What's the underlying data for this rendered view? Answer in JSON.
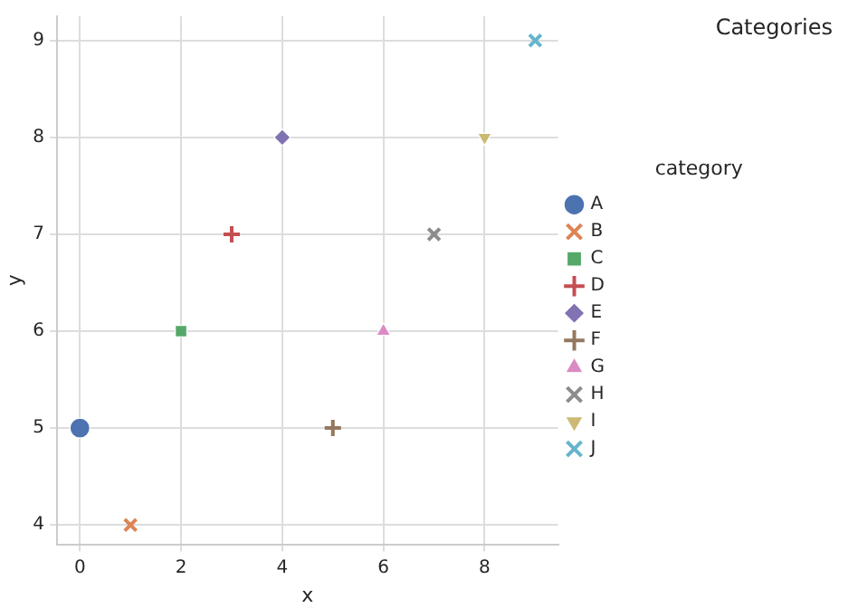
{
  "chart_data": {
    "type": "scatter",
    "title": "Categories",
    "xlabel": "x",
    "ylabel": "y",
    "legend_title": "category",
    "legend": "right",
    "grid": true,
    "xlim": [
      -0.45,
      9.45
    ],
    "xticks": [
      0,
      2,
      4,
      6,
      8
    ],
    "ylim": [
      3.8,
      9.25
    ],
    "yticks": [
      4,
      5,
      6,
      7,
      8,
      9
    ],
    "series": [
      {
        "name": "A",
        "color": "#4c72b0",
        "marker": "circle",
        "x": [
          0
        ],
        "values": [
          5
        ]
      },
      {
        "name": "B",
        "color": "#dd8452",
        "marker": "cross",
        "x": [
          1
        ],
        "values": [
          4
        ]
      },
      {
        "name": "C",
        "color": "#55a868",
        "marker": "square",
        "x": [
          2
        ],
        "values": [
          6
        ]
      },
      {
        "name": "D",
        "color": "#c44e52",
        "marker": "plus",
        "x": [
          3
        ],
        "values": [
          7
        ]
      },
      {
        "name": "E",
        "color": "#8172b3",
        "marker": "diamond",
        "x": [
          4
        ],
        "values": [
          8
        ]
      },
      {
        "name": "F",
        "color": "#937860",
        "marker": "plus",
        "x": [
          5
        ],
        "values": [
          5
        ]
      },
      {
        "name": "G",
        "color": "#da8bc3",
        "marker": "triangle",
        "x": [
          6
        ],
        "values": [
          6
        ]
      },
      {
        "name": "H",
        "color": "#8c8c8c",
        "marker": "cross",
        "x": [
          7
        ],
        "values": [
          7
        ]
      },
      {
        "name": "I",
        "color": "#ccb974",
        "marker": "triangle-down",
        "x": [
          8
        ],
        "values": [
          8
        ]
      },
      {
        "name": "J",
        "color": "#64b5cd",
        "marker": "cross",
        "x": [
          9
        ],
        "values": [
          9
        ]
      }
    ]
  }
}
